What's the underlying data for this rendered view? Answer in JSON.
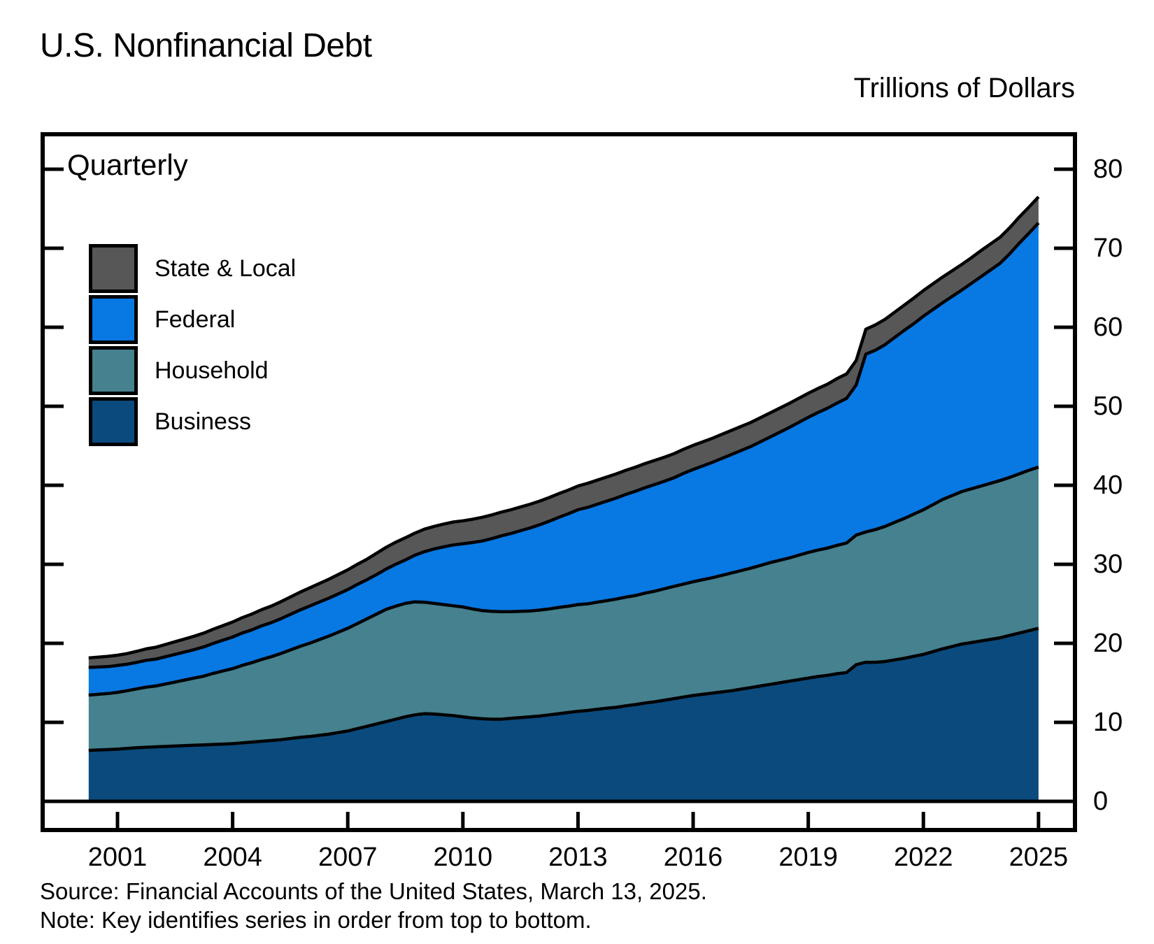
{
  "header": {
    "title": "U.S. Nonfinancial Debt",
    "units_label": "Trillions of Dollars"
  },
  "plot": {
    "frequency_label": "Quarterly"
  },
  "legend": {
    "items": [
      {
        "label": "State & Local",
        "color": "#575757"
      },
      {
        "label": "Federal",
        "color": "#0878e3"
      },
      {
        "label": "Household",
        "color": "#45818e"
      },
      {
        "label": "Business",
        "color": "#0b4a7d"
      }
    ]
  },
  "footer": {
    "source": "Source: Financial Accounts of the United States, March 13, 2025.",
    "note": "Note: Key identifies series in order from top to bottom."
  },
  "chart_data": {
    "type": "area",
    "stacked": true,
    "title": "U.S. Nonfinancial Debt",
    "ylabel": "Trillions of Dollars",
    "frequency": "Quarterly",
    "grid": false,
    "legend_position": "top-left-inside",
    "legend_order_top_to_bottom": [
      "State & Local",
      "Federal",
      "Household",
      "Business"
    ],
    "x_start": 2000.25,
    "x_step": 0.25,
    "x_ticks": [
      "2001",
      "2004",
      "2007",
      "2010",
      "2013",
      "2016",
      "2019",
      "2022",
      "2025"
    ],
    "y_ticks": [
      "0",
      "10",
      "20",
      "30",
      "40",
      "50",
      "60",
      "70",
      "80"
    ],
    "ylim": [
      0,
      84.5
    ],
    "xlim": [
      1999.05,
      2025.97
    ],
    "axis_color": "#000000",
    "line_color": "#000000",
    "series": [
      {
        "name": "Business",
        "color": "#0b4a7d",
        "values": [
          6.45,
          6.5,
          6.55,
          6.6,
          6.7,
          6.78,
          6.85,
          6.9,
          6.95,
          7.0,
          7.05,
          7.1,
          7.15,
          7.2,
          7.25,
          7.3,
          7.4,
          7.5,
          7.6,
          7.7,
          7.8,
          7.95,
          8.1,
          8.2,
          8.35,
          8.5,
          8.7,
          8.9,
          9.2,
          9.5,
          9.8,
          10.1,
          10.4,
          10.7,
          10.95,
          11.1,
          11.05,
          10.95,
          10.85,
          10.7,
          10.55,
          10.45,
          10.4,
          10.4,
          10.5,
          10.6,
          10.7,
          10.8,
          10.95,
          11.1,
          11.25,
          11.4,
          11.5,
          11.65,
          11.8,
          11.9,
          12.1,
          12.25,
          12.45,
          12.6,
          12.8,
          13.0,
          13.2,
          13.4,
          13.55,
          13.7,
          13.85,
          14.0,
          14.2,
          14.4,
          14.6,
          14.8,
          15.0,
          15.2,
          15.4,
          15.6,
          15.8,
          15.95,
          16.15,
          16.3,
          17.3,
          17.6,
          17.6,
          17.7,
          17.9,
          18.1,
          18.35,
          18.6,
          18.95,
          19.3,
          19.6,
          19.9,
          20.1,
          20.3,
          20.5,
          20.7,
          21.0,
          21.3,
          21.6,
          21.9
        ]
      },
      {
        "name": "Household",
        "color": "#45818e",
        "values": [
          7.0,
          7.05,
          7.1,
          7.2,
          7.3,
          7.45,
          7.6,
          7.7,
          7.9,
          8.1,
          8.3,
          8.5,
          8.7,
          9.0,
          9.25,
          9.5,
          9.8,
          10.05,
          10.35,
          10.6,
          10.9,
          11.2,
          11.5,
          11.8,
          12.1,
          12.4,
          12.7,
          13.0,
          13.3,
          13.6,
          13.9,
          14.2,
          14.3,
          14.35,
          14.3,
          14.1,
          14.0,
          13.95,
          13.9,
          13.9,
          13.8,
          13.7,
          13.65,
          13.6,
          13.5,
          13.45,
          13.4,
          13.4,
          13.4,
          13.45,
          13.45,
          13.5,
          13.5,
          13.55,
          13.6,
          13.7,
          13.75,
          13.8,
          13.9,
          14.0,
          14.1,
          14.2,
          14.3,
          14.4,
          14.5,
          14.6,
          14.75,
          14.9,
          15.0,
          15.1,
          15.25,
          15.4,
          15.5,
          15.6,
          15.75,
          15.9,
          16.0,
          16.1,
          16.25,
          16.4,
          16.4,
          16.5,
          16.8,
          17.1,
          17.4,
          17.7,
          18.0,
          18.3,
          18.6,
          18.9,
          19.1,
          19.3,
          19.45,
          19.6,
          19.75,
          19.9,
          20.0,
          20.15,
          20.3,
          20.4
        ]
      },
      {
        "name": "Federal",
        "color": "#0878e3",
        "values": [
          3.5,
          3.45,
          3.4,
          3.4,
          3.35,
          3.35,
          3.4,
          3.4,
          3.45,
          3.5,
          3.55,
          3.6,
          3.7,
          3.8,
          3.9,
          4.0,
          4.1,
          4.15,
          4.25,
          4.3,
          4.4,
          4.5,
          4.6,
          4.7,
          4.75,
          4.8,
          4.85,
          4.9,
          4.95,
          4.95,
          5.0,
          5.1,
          5.3,
          5.5,
          5.9,
          6.4,
          6.9,
          7.3,
          7.7,
          8.0,
          8.4,
          8.8,
          9.2,
          9.6,
          9.9,
          10.2,
          10.5,
          10.8,
          11.1,
          11.4,
          11.7,
          12.0,
          12.2,
          12.4,
          12.6,
          12.8,
          13.0,
          13.2,
          13.35,
          13.5,
          13.6,
          13.75,
          14.0,
          14.2,
          14.4,
          14.6,
          14.8,
          15.0,
          15.2,
          15.4,
          15.65,
          15.9,
          16.2,
          16.5,
          16.8,
          17.1,
          17.4,
          17.7,
          18.0,
          18.3,
          19.0,
          22.5,
          22.7,
          23.0,
          23.4,
          23.8,
          24.1,
          24.5,
          24.7,
          24.9,
          25.2,
          25.5,
          26.0,
          26.5,
          27.0,
          27.5,
          28.3,
          29.2,
          30.0,
          30.9
        ]
      },
      {
        "name": "State & Local",
        "color": "#575757",
        "values": [
          1.2,
          1.25,
          1.3,
          1.3,
          1.35,
          1.4,
          1.45,
          1.5,
          1.55,
          1.6,
          1.65,
          1.7,
          1.75,
          1.8,
          1.85,
          1.9,
          1.95,
          2.0,
          2.05,
          2.1,
          2.15,
          2.2,
          2.25,
          2.3,
          2.35,
          2.4,
          2.45,
          2.5,
          2.55,
          2.6,
          2.7,
          2.75,
          2.8,
          2.8,
          2.8,
          2.85,
          2.85,
          2.9,
          2.9,
          2.9,
          2.95,
          3.0,
          3.0,
          3.0,
          3.0,
          3.0,
          3.0,
          3.0,
          3.0,
          3.0,
          3.0,
          3.0,
          3.05,
          3.05,
          3.05,
          3.05,
          3.05,
          3.05,
          3.05,
          3.05,
          3.05,
          3.05,
          3.05,
          3.05,
          3.05,
          3.05,
          3.05,
          3.05,
          3.05,
          3.05,
          3.05,
          3.05,
          3.05,
          3.05,
          3.05,
          3.05,
          3.05,
          3.05,
          3.1,
          3.1,
          3.1,
          3.15,
          3.2,
          3.2,
          3.2,
          3.2,
          3.25,
          3.25,
          3.25,
          3.25,
          3.25,
          3.25,
          3.25,
          3.3,
          3.3,
          3.3,
          3.3,
          3.3,
          3.3,
          3.3
        ]
      }
    ]
  }
}
